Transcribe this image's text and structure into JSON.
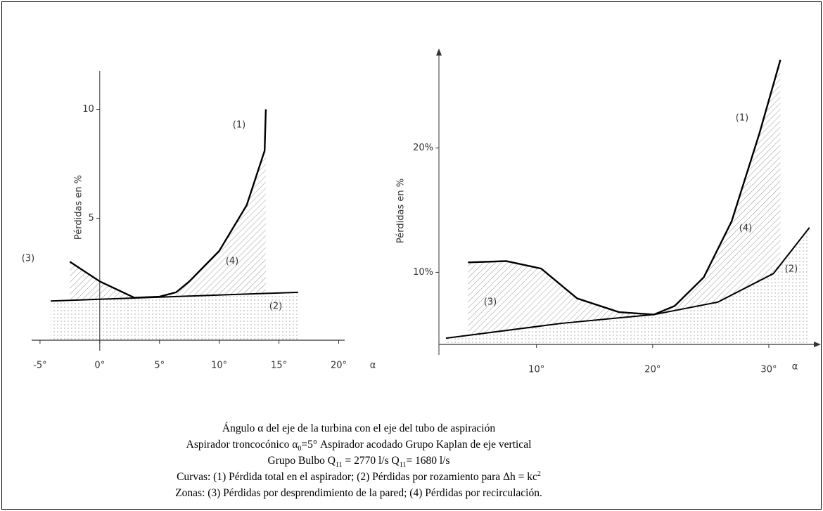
{
  "chart_data": [
    {
      "type": "line",
      "ylabel": "Pérdidas en %",
      "xlabel": "α",
      "xlim": [
        -5.7,
        20.5
      ],
      "ylim": [
        -0.6,
        11.5
      ],
      "xticks": [
        {
          "value": -5,
          "label": "-5°"
        },
        {
          "value": 0,
          "label": "0°"
        },
        {
          "value": 5,
          "label": "5°"
        },
        {
          "value": 10,
          "label": "10°"
        },
        {
          "value": 15,
          "label": "15°"
        },
        {
          "value": 20,
          "label": "20°"
        }
      ],
      "yticks": [
        5,
        10
      ],
      "series": [
        {
          "name": "(1)",
          "color": "#000000",
          "x": [
            -2.5,
            0,
            2.9,
            5,
            6.4,
            7.5,
            10,
            12.3,
            13.8,
            13.9
          ],
          "values": [
            3.0,
            2.1,
            1.35,
            1.4,
            1.6,
            2.1,
            3.5,
            5.6,
            8.1,
            10
          ]
        },
        {
          "name": "(2)",
          "color": "#000000",
          "x": [
            -4.1,
            16.6
          ],
          "values": [
            1.2,
            1.6
          ]
        }
      ],
      "annotations": [
        "(3)",
        "(4)"
      ]
    },
    {
      "type": "line",
      "ylabel": "Pérdidas en %",
      "xlabel": "α",
      "xlim": [
        1.6,
        34
      ],
      "ylim": [
        4.2,
        27.1
      ],
      "xticks": [
        {
          "value": 10,
          "label": "10°"
        },
        {
          "value": 20,
          "label": "20°"
        },
        {
          "value": 30,
          "label": "30°"
        }
      ],
      "yticks": [
        {
          "value": 10,
          "label": "10%"
        },
        {
          "value": 20,
          "label": "20%"
        }
      ],
      "series": [
        {
          "name": "(1)",
          "color": "#000000",
          "x": [
            4.1,
            7.4,
            10.4,
            13.5,
            17.1,
            20.1,
            21.9,
            24.4,
            26.8,
            29.2,
            31
          ],
          "values": [
            10.8,
            10.9,
            10.3,
            7.9,
            6.8,
            6.6,
            7.3,
            9.6,
            14.1,
            21.2,
            27.1
          ]
        },
        {
          "name": "(2)",
          "color": "#000000",
          "x": [
            2.2,
            12.2,
            20.1,
            25.6,
            30.4,
            33.5
          ],
          "values": [
            4.7,
            5.9,
            6.6,
            7.6,
            9.9,
            13.6
          ]
        }
      ],
      "annotations": [
        "(3)",
        "(4)"
      ]
    }
  ],
  "caption": [
    [
      "Ángulo α del eje de la turbina con el eje del tubo de aspiración"
    ],
    [
      "Aspirador troncocónico α",
      "0",
      "=5° Aspirador acodado Grupo Kaplan de eje vertical"
    ],
    [
      "Grupo Bulbo Q",
      "11",
      " = 2770 l/s Q",
      "11",
      "= 1680 l/s"
    ],
    [
      "Curvas: (1) Pérdida total en el aspirador; (2) Pérdidas por rozamiento para Δh = kc",
      "2"
    ],
    [
      "Zonas: (3) Pérdidas por desprendimiento de la pared; (4) Pérdidas por recirculación."
    ]
  ]
}
